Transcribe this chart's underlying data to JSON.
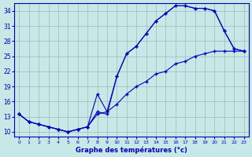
{
  "xlabel": "Graphe des températures (°c)",
  "ylim": [
    9,
    35.5
  ],
  "xlim": [
    -0.5,
    23.5
  ],
  "yticks": [
    10,
    13,
    16,
    19,
    22,
    25,
    28,
    31,
    34
  ],
  "xtick_labels": [
    "0",
    "1",
    "2",
    "3",
    "4",
    "5",
    "6",
    "7",
    "8",
    "9",
    "10",
    "11",
    "12",
    "13",
    "14",
    "15",
    "16",
    "17",
    "18",
    "19",
    "20",
    "21",
    "22",
    "23"
  ],
  "line_color": "#0000bb",
  "bg_color": "#c8e8e8",
  "grid_color": "#99bbbb",
  "line1_x": [
    0,
    1,
    2,
    3,
    4,
    5,
    6,
    7,
    8,
    9,
    10,
    11,
    12,
    13,
    14,
    15,
    16,
    17,
    18,
    19,
    20,
    21,
    22,
    23
  ],
  "line1_y": [
    13.5,
    12.0,
    11.5,
    11.0,
    10.5,
    10.0,
    10.5,
    11.0,
    14.0,
    13.5,
    21.0,
    25.5,
    27.0,
    29.5,
    32.0,
    33.5,
    35.0,
    35.0,
    34.5,
    34.5,
    34.0,
    30.0,
    26.5,
    26.0
  ],
  "line2_x": [
    0,
    1,
    2,
    3,
    4,
    5,
    6,
    7,
    8,
    9,
    10,
    11,
    12,
    13,
    14,
    15,
    16,
    17,
    18,
    19,
    20,
    21,
    22,
    23
  ],
  "line2_y": [
    13.5,
    12.0,
    11.5,
    11.0,
    10.5,
    10.0,
    10.5,
    11.0,
    17.5,
    14.0,
    21.0,
    25.5,
    27.0,
    29.5,
    32.0,
    33.5,
    35.0,
    35.0,
    34.5,
    34.5,
    34.0,
    30.0,
    26.5,
    26.0
  ],
  "line3_x": [
    0,
    1,
    2,
    3,
    4,
    5,
    6,
    7,
    8,
    9,
    10,
    11,
    12,
    13,
    14,
    15,
    16,
    17,
    18,
    19,
    20,
    21,
    22,
    23
  ],
  "line3_y": [
    13.5,
    12.0,
    11.5,
    11.0,
    10.5,
    10.0,
    10.5,
    11.0,
    13.5,
    14.0,
    15.5,
    17.5,
    19.0,
    20.0,
    21.5,
    22.0,
    23.5,
    24.0,
    25.0,
    25.5,
    26.0,
    26.0,
    26.0,
    26.0
  ]
}
